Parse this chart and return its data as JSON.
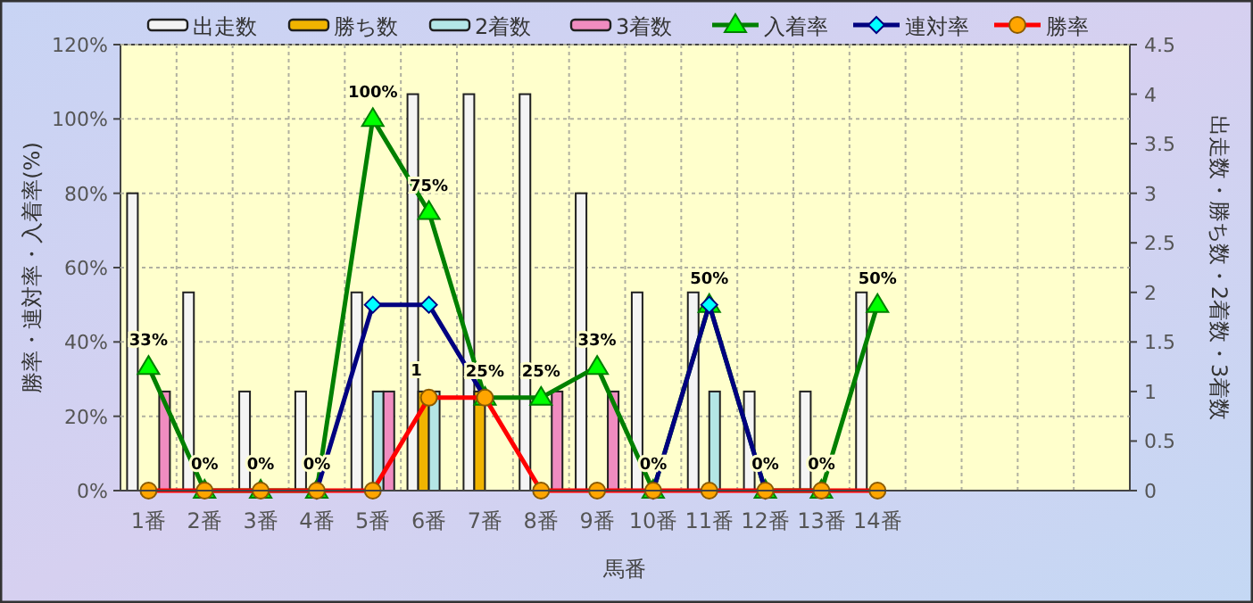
{
  "chart_data": {
    "type": "bar",
    "xlabel": "馬番",
    "ylabel": "勝率・連対率・入着率(%)",
    "y2label": "出走数・勝ち数・2着数・3着数",
    "categories": [
      "1番",
      "2番",
      "3番",
      "4番",
      "5番",
      "6番",
      "7番",
      "8番",
      "9番",
      "10番",
      "11番",
      "12番",
      "13番",
      "14番",
      null,
      null,
      null,
      null
    ],
    "ylim": [
      0,
      120
    ],
    "yticks": [
      {
        "value": 0,
        "label": "0%"
      },
      {
        "value": 20,
        "label": "20%"
      },
      {
        "value": 40,
        "label": "40%"
      },
      {
        "value": 60,
        "label": "60%"
      },
      {
        "value": 80,
        "label": "80%"
      },
      {
        "value": 100,
        "label": "100%"
      },
      {
        "value": 120,
        "label": "120%"
      }
    ],
    "y2lim": [
      0,
      4.5
    ],
    "y2ticks": [
      0,
      0.5,
      1,
      1.5,
      2,
      2.5,
      3,
      3.5,
      4,
      4.5
    ],
    "grid": true,
    "legend": "top",
    "series": [
      {
        "name": "出走数",
        "axis": "y2",
        "color": "#f4f4f4",
        "values": [
          3,
          2,
          1,
          1,
          2,
          4,
          4,
          4,
          3,
          2,
          2,
          1,
          1,
          2,
          null,
          null,
          null,
          null
        ]
      },
      {
        "name": "勝ち数",
        "axis": "y2",
        "color": "#f0b400",
        "values": [
          0,
          0,
          0,
          0,
          0,
          1,
          1,
          0,
          0,
          0,
          0,
          0,
          0,
          0,
          null,
          null,
          null,
          null
        ],
        "value_labels": [
          null,
          null,
          null,
          null,
          null,
          "1",
          null,
          null,
          null,
          null,
          null,
          null,
          null,
          null,
          null,
          null,
          null,
          null
        ]
      },
      {
        "name": "2着数",
        "axis": "y2",
        "color": "#b4e6e6",
        "values": [
          0,
          0,
          0,
          0,
          1,
          1,
          0,
          0,
          0,
          0,
          1,
          0,
          0,
          0,
          null,
          null,
          null,
          null
        ]
      },
      {
        "name": "3着数",
        "axis": "y2",
        "color": "#f08cc0",
        "values": [
          1,
          0,
          0,
          0,
          1,
          0,
          0,
          1,
          1,
          0,
          0,
          0,
          0,
          0,
          null,
          null,
          null,
          null
        ]
      },
      {
        "name": "入着率",
        "type": "line",
        "marker": "triangle",
        "color": "#008000",
        "values": [
          33.33,
          0,
          0,
          0,
          100,
          75,
          25,
          25,
          33.33,
          0,
          50,
          0,
          0,
          50,
          null,
          null,
          null,
          null
        ],
        "value_labels": [
          "33%",
          "0%",
          "0%",
          "0%",
          "100%",
          "75%",
          "25%",
          "25%",
          "33%",
          "0%",
          "50%",
          "0%",
          "0%",
          "50%",
          null,
          null,
          null,
          null
        ]
      },
      {
        "name": "連対率",
        "type": "line",
        "marker": "diamond",
        "color": "#000080",
        "values": [
          null,
          null,
          null,
          0,
          50,
          50,
          25,
          null,
          null,
          0,
          50,
          0,
          null,
          null,
          null,
          null,
          null,
          null
        ]
      },
      {
        "name": "勝率",
        "type": "line",
        "marker": "circle",
        "color": "#ff0000",
        "values": [
          0,
          0,
          0,
          0,
          0,
          25,
          25,
          0,
          0,
          0,
          0,
          0,
          0,
          0,
          null,
          null,
          null,
          null
        ]
      }
    ]
  }
}
